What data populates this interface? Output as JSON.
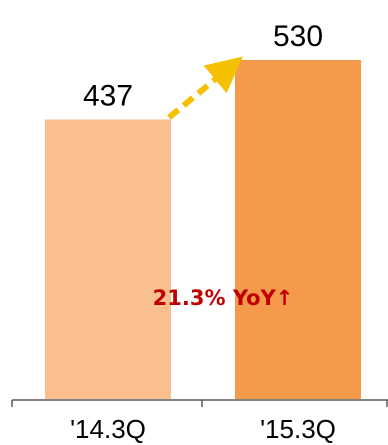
{
  "chart_data": {
    "type": "bar",
    "categories": [
      "'14.3Q",
      "'15.3Q"
    ],
    "values": [
      437,
      530
    ],
    "value_labels": [
      "437",
      "530"
    ],
    "title": "",
    "xlabel": "",
    "ylabel": "",
    "ylim": [
      0,
      580
    ],
    "grid": false,
    "legend": "none",
    "annotation": {
      "text": "21.3% YoY↑",
      "from": "'14.3Q",
      "to": "'15.3Q"
    },
    "colors": {
      "bars": [
        "#F9C08E",
        "#F59A4A"
      ],
      "arrow": "#F5C000",
      "annotation_text": "#C00000",
      "axis": "#595959"
    }
  }
}
